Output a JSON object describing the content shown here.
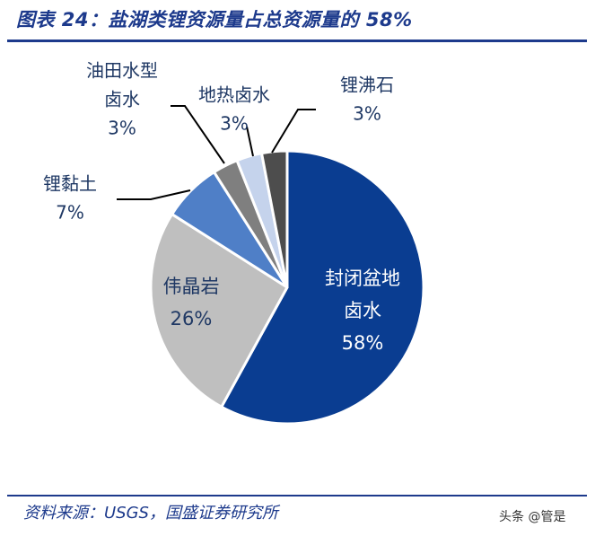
{
  "header": {
    "title": "图表 24：盐湖类锂资源量占总资源量的 58%"
  },
  "footer": {
    "source": "资料来源：USGS，国盛证券研究所"
  },
  "watermark": {
    "text": "头条 @管是"
  },
  "chart_data": {
    "type": "pie",
    "slices": [
      {
        "name": "封闭盆地卤水",
        "value": 58,
        "label_lines": [
          "封闭盆地",
          "卤水",
          "58%"
        ],
        "color": "#0a3d91",
        "label_color": "#ffffff"
      },
      {
        "name": "伟晶岩",
        "value": 26,
        "label_lines": [
          "伟晶岩",
          "26%"
        ],
        "color": "#bfbfbf",
        "label_color": "#1f3864"
      },
      {
        "name": "锂黏土",
        "value": 7,
        "label_lines": [
          "锂黏土",
          "7%"
        ],
        "color": "#4f7fc7",
        "label_color": "#1f3864"
      },
      {
        "name": "油田水型卤水",
        "value": 3,
        "label_lines": [
          "油田水型",
          "卤水",
          "3%"
        ],
        "color": "#7f7f7f",
        "label_color": "#1f3864"
      },
      {
        "name": "地热卤水",
        "value": 3,
        "label_lines": [
          "地热卤水",
          "3%"
        ],
        "color": "#c5d3ec",
        "label_color": "#1f3864"
      },
      {
        "name": "锂沸石",
        "value": 3,
        "label_lines": [
          "锂沸石",
          "3%"
        ],
        "color": "#4d4d4d",
        "label_color": "#1f3864"
      }
    ],
    "start_angle_deg": 0,
    "direction": "clockwise"
  }
}
